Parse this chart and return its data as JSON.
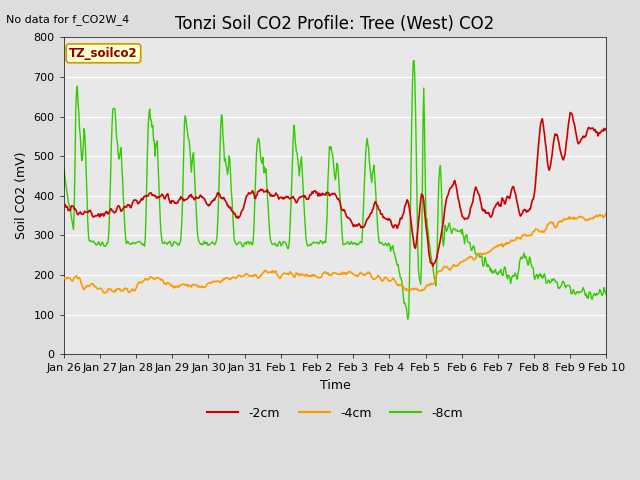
{
  "title": "Tonzi Soil CO2 Profile: Tree (West) CO2",
  "subtitle": "No data for f_CO2W_4",
  "ylabel": "Soil CO2 (mV)",
  "xlabel": "Time",
  "legend_label": "TZ_soilco2",
  "series_labels": [
    "-2cm",
    "-4cm",
    "-8cm"
  ],
  "series_colors": [
    "#cc0000",
    "#ff9900",
    "#33cc00"
  ],
  "ylim": [
    0,
    800
  ],
  "fig_bg": "#dddddd",
  "plot_bg": "#e8e8e8",
  "title_fontsize": 12,
  "axis_fontsize": 9,
  "tick_fontsize": 8,
  "legend_box_facecolor": "#ffffcc",
  "legend_box_edgecolor": "#cc9900",
  "xtick_labels": [
    "Jan 26",
    "Jan 27",
    "Jan 28",
    "Jan 29",
    "Jan 30",
    "Jan 31",
    "Feb 1",
    "Feb 2",
    "Feb 3",
    "Feb 4",
    "Feb 5",
    "Feb 6",
    "Feb 7",
    "Feb 8",
    "Feb 9",
    "Feb 10"
  ],
  "ytick_positions": [
    0,
    100,
    200,
    300,
    400,
    500,
    600,
    700,
    800
  ],
  "n_days": 15,
  "pts_per_day": 48,
  "seed": 7
}
